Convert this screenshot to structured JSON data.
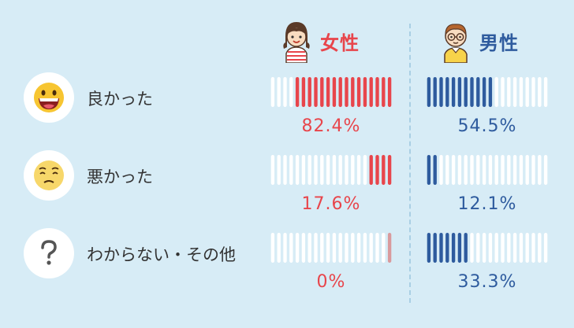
{
  "headers": {
    "female": "女性",
    "male": "男性"
  },
  "colors": {
    "background": "#d7ecf6",
    "female": "#e8454b",
    "female_zero": "#d99a9d",
    "male": "#2e5b9e",
    "empty": "#ffffff"
  },
  "rows": [
    {
      "label": "良かった",
      "icon": "grinning-face-icon",
      "female_pct": "82.4%",
      "male_pct": "54.5%"
    },
    {
      "label": "悪かった",
      "icon": "worried-face-icon",
      "female_pct": "17.6%",
      "male_pct": "12.1%"
    },
    {
      "label": "わからない・その他",
      "icon": "question-mark-icon",
      "female_pct": "0%",
      "male_pct": "33.3%"
    }
  ],
  "chart_data": {
    "type": "bar",
    "categories": [
      "良かった",
      "悪かった",
      "わからない・その他"
    ],
    "series": [
      {
        "name": "女性",
        "values": [
          82.4,
          17.6,
          0
        ]
      },
      {
        "name": "男性",
        "values": [
          54.5,
          12.1,
          33.3
        ]
      }
    ],
    "unit": "%",
    "ylim": [
      0,
      100
    ]
  }
}
